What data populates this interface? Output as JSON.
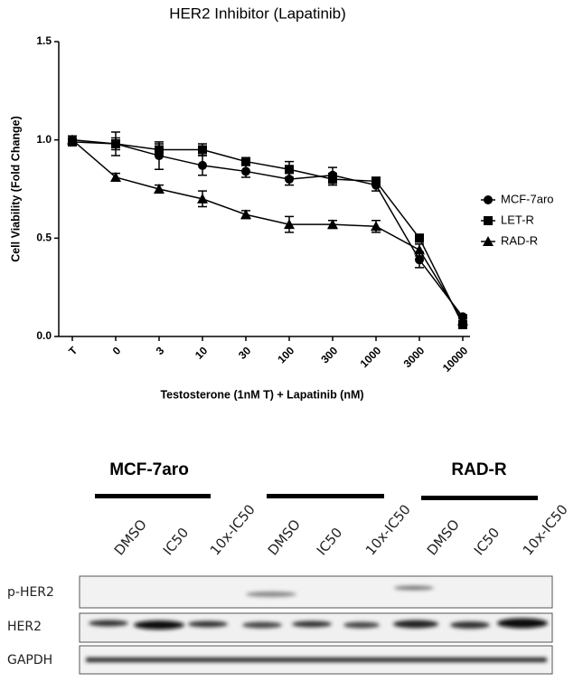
{
  "chart_data": {
    "type": "line",
    "title": "HER2 Inhibitor (Lapatinib)",
    "x_label": "Testosterone (1nM T) + Lapatinib (nM)",
    "y_label": "Cell Viability (Fold Change)",
    "categories": [
      "T",
      "0",
      "3",
      "10",
      "30",
      "100",
      "300",
      "1000",
      "3000",
      "10000"
    ],
    "ylim": [
      0,
      1.5
    ],
    "yticks": [
      {
        "value": 0,
        "label": "0.0"
      },
      {
        "value": 0.5,
        "label": "0.5"
      },
      {
        "value": 1,
        "label": "1.0"
      },
      {
        "value": 1.5,
        "label": "1.5"
      }
    ],
    "grid": false,
    "legend": "right",
    "series": [
      {
        "name": "MCF-7aro",
        "color": "#000000",
        "marker": "circle",
        "values": [
          1.0,
          0.98,
          0.92,
          0.87,
          0.84,
          0.8,
          0.82,
          0.77,
          0.39,
          0.1
        ],
        "errors": [
          0.02,
          0.06,
          0.07,
          0.05,
          0.03,
          0.03,
          0.04,
          0.03,
          0.04,
          0.01
        ]
      },
      {
        "name": "LET-R",
        "color": "#000000",
        "marker": "square",
        "values": [
          0.99,
          0.98,
          0.95,
          0.95,
          0.89,
          0.85,
          0.8,
          0.79,
          0.5,
          0.06
        ],
        "errors": [
          0.02,
          0.03,
          0.03,
          0.03,
          0.02,
          0.04,
          0.03,
          0.02,
          0.02,
          0.01
        ]
      },
      {
        "name": "RAD-R",
        "color": "#000000",
        "marker": "triangle",
        "values": [
          1.0,
          0.81,
          0.75,
          0.7,
          0.62,
          0.57,
          0.57,
          0.56,
          0.44,
          0.08
        ],
        "errors": [
          0.02,
          0.02,
          0.02,
          0.04,
          0.02,
          0.04,
          0.02,
          0.03,
          0.03,
          0.01
        ]
      }
    ]
  },
  "blot": {
    "groups": [
      "MCF-7aro",
      "RAD-R"
    ],
    "lanes": [
      "DMSO",
      "IC50",
      "10x-IC50",
      "DMSO",
      "IC50",
      "10x-IC50",
      "DMSO",
      "IC50",
      "10x-IC50"
    ],
    "rows": [
      "p-HER2",
      "HER2",
      "GAPDH"
    ]
  }
}
